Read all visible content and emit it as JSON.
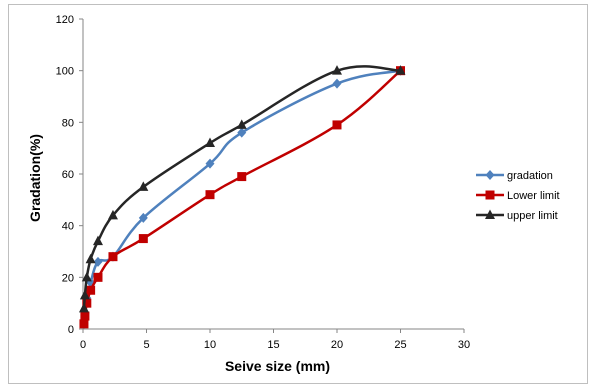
{
  "chart_data": {
    "type": "line",
    "xlabel": "Seive size (mm)",
    "ylabel": "Gradation(%)",
    "xlim": [
      0,
      30
    ],
    "ylim": [
      0,
      120
    ],
    "xticks": [
      0,
      5,
      10,
      15,
      20,
      25,
      30
    ],
    "yticks": [
      0,
      20,
      40,
      60,
      80,
      100,
      120
    ],
    "grid": "none",
    "legend_position": "right",
    "series": [
      {
        "name": "gradation",
        "color": "#4F81BD",
        "marker": "diamond",
        "x": [
          0.075,
          0.15,
          0.3,
          0.6,
          1.18,
          2.36,
          4.75,
          10,
          12.5,
          20,
          25
        ],
        "y": [
          2,
          6,
          12,
          18,
          26,
          28,
          43,
          64,
          76,
          95,
          100
        ]
      },
      {
        "name": "Lower limit",
        "color": "#C00000",
        "marker": "square",
        "x": [
          0.075,
          0.15,
          0.3,
          0.6,
          1.18,
          2.36,
          4.75,
          10,
          12.5,
          20,
          25
        ],
        "y": [
          2,
          5,
          10,
          15,
          20,
          28,
          35,
          52,
          59,
          79,
          100
        ]
      },
      {
        "name": "upper limit",
        "color": "#262626",
        "marker": "triangle",
        "x": [
          0.075,
          0.15,
          0.3,
          0.6,
          1.18,
          2.36,
          4.75,
          10,
          12.5,
          20,
          25
        ],
        "y": [
          8,
          13,
          20,
          27,
          34,
          44,
          55,
          72,
          79,
          100,
          100
        ]
      }
    ]
  }
}
